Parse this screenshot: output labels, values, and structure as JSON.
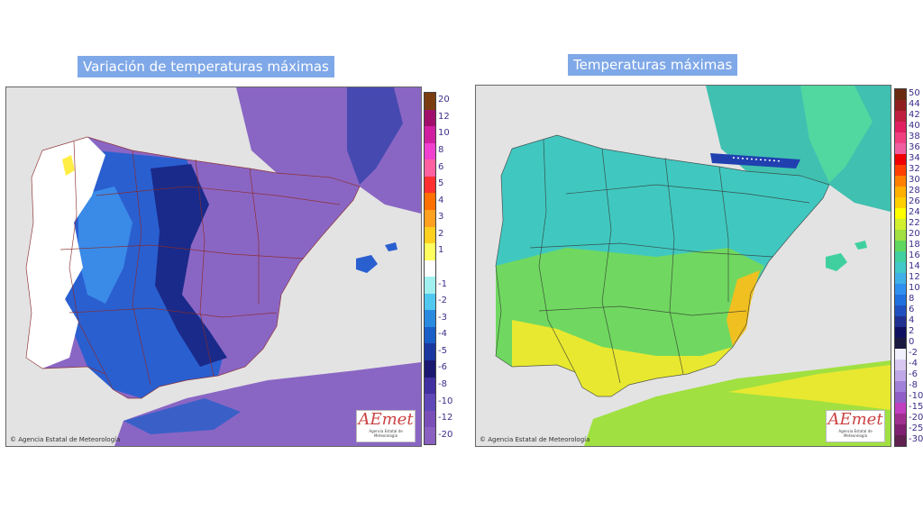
{
  "maps": {
    "left": {
      "title": "Variación de temperaturas máximas",
      "credit": "© Agencia Estatal de Meteorología",
      "logo": {
        "word": "AEmet",
        "sub": "Agencia Estatal de Meteorología"
      },
      "legend": {
        "labels": [
          "20",
          "12",
          "10",
          "8",
          "6",
          "5",
          "4",
          "3",
          "2",
          "1",
          "",
          "-1",
          "-2",
          "-3",
          "-4",
          "-5",
          "-6",
          "-8",
          "-10",
          "-12",
          "-20"
        ],
        "colors": [
          "#7a3d10",
          "#a0106a",
          "#d020a0",
          "#f040d0",
          "#ff60a0",
          "#ff3030",
          "#ff7000",
          "#ffa020",
          "#ffd020",
          "#ffff60",
          "#ffffff",
          "#a0f0f0",
          "#50c8f0",
          "#2a8ae0",
          "#1a5ec8",
          "#1a38a0",
          "#1a1870",
          "#4030a0",
          "#6048b8",
          "#7a50b8",
          "#8a60c0"
        ]
      }
    },
    "right": {
      "title": "Temperaturas máximas",
      "credit": "© Agencia Estatal de Meteorología",
      "logo": {
        "word": "AEmet",
        "sub": "Agencia Estatal de Meteorología"
      },
      "legend": {
        "labels": [
          "50",
          "44",
          "42",
          "40",
          "38",
          "36",
          "34",
          "32",
          "30",
          "28",
          "26",
          "24",
          "22",
          "20",
          "18",
          "16",
          "14",
          "12",
          "10",
          "8",
          "6",
          "4",
          "2",
          "0",
          "-2",
          "-4",
          "-6",
          "-8",
          "-10",
          "-15",
          "-20",
          "-25",
          "-30"
        ],
        "colors": [
          "#6a2a10",
          "#902020",
          "#c02040",
          "#e02060",
          "#f04080",
          "#f060a0",
          "#f00000",
          "#ff4000",
          "#ff8000",
          "#ffb000",
          "#ffd000",
          "#ffff00",
          "#d0f030",
          "#a0e040",
          "#60d860",
          "#40d0a0",
          "#40c8c8",
          "#40b0e8",
          "#3090f0",
          "#2070e0",
          "#2050c0",
          "#203090",
          "#101060",
          "#1a1a40",
          "#f0f0ff",
          "#d8c8f0",
          "#c0a8e8",
          "#a080d8",
          "#9060c8",
          "#c040c0",
          "#a03090",
          "#802070",
          "#602050"
        ]
      }
    }
  }
}
